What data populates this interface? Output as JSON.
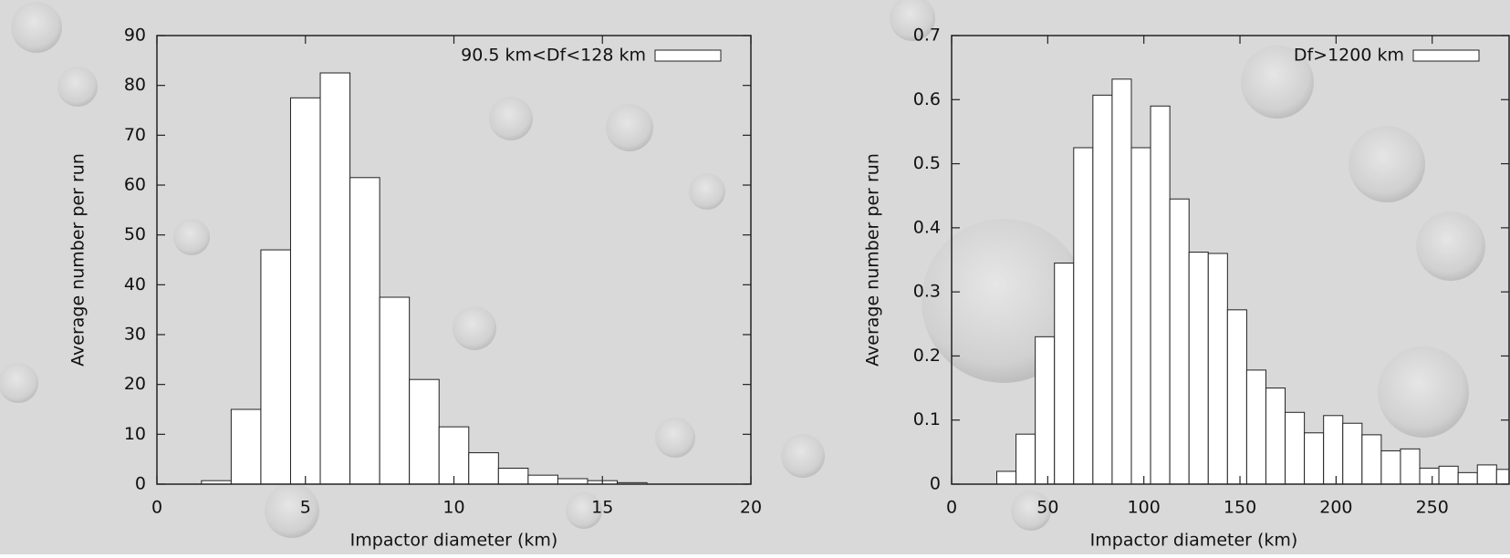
{
  "chart_data": [
    {
      "type": "histogram",
      "x_label": "Impactor diameter (km)",
      "y_label": "Average number per run",
      "bins": [
        1.5,
        2.5,
        3.5,
        4.5,
        5.5,
        6.5,
        7.5,
        8.5,
        9.5,
        10.5,
        11.5,
        12.5,
        13.5,
        14.5,
        15.5,
        16.5
      ],
      "series": [
        {
          "name": "90.5 km<Df<128 km",
          "color": "#ffffff",
          "values": [
            0.7,
            15,
            47,
            77.5,
            82.5,
            61.5,
            37.5,
            21,
            11.5,
            6.3,
            3.2,
            1.8,
            1.1,
            0.7,
            0.3
          ]
        }
      ],
      "xlim": [
        0,
        20
      ],
      "xticks": [
        0,
        5,
        10,
        15,
        20
      ],
      "ylim": [
        0,
        90
      ],
      "yticks": [
        0,
        10,
        20,
        30,
        40,
        50,
        60,
        70,
        80,
        90
      ],
      "legend": "top-right"
    },
    {
      "type": "histogram",
      "x_label": "Impactor diameter (km)",
      "y_label": "Average number per run",
      "bins": [
        23.5,
        33.5,
        43.5,
        53.5,
        63.5,
        73.5,
        83.5,
        93.5,
        103.5,
        113.5,
        123.5,
        133.5,
        143.5,
        153.5,
        163.5,
        173.5,
        183.5,
        193.5,
        203.5,
        213.5,
        223.5,
        233.5,
        243.5,
        253.5,
        263.5,
        273.5,
        283.5,
        293.5
      ],
      "series": [
        {
          "name": "Df>1200 km",
          "color": "#ffffff",
          "values": [
            0.02,
            0.078,
            0.23,
            0.345,
            0.525,
            0.607,
            0.632,
            0.525,
            0.59,
            0.445,
            0.362,
            0.36,
            0.272,
            0.178,
            0.15,
            0.112,
            0.08,
            0.107,
            0.095,
            0.077,
            0.052,
            0.055,
            0.025,
            0.028,
            0.018,
            0.03,
            0.023
          ]
        }
      ],
      "xlim": [
        0,
        290
      ],
      "xticks": [
        0,
        50,
        100,
        150,
        200,
        250
      ],
      "ylim": [
        0,
        0.7
      ],
      "yticks": [
        0,
        0.1,
        0.2,
        0.3,
        0.4,
        0.5,
        0.6,
        0.7
      ],
      "legend": "top-right"
    }
  ]
}
